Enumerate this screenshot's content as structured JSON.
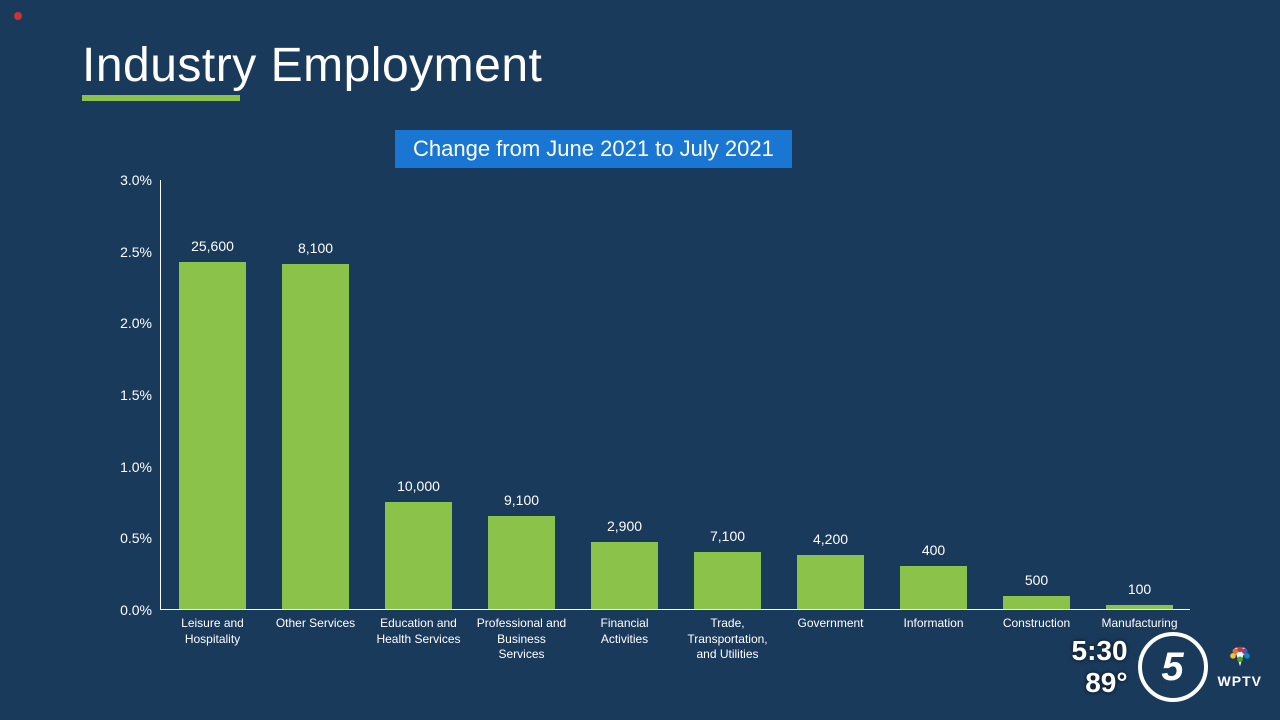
{
  "title": "Industry Employment",
  "subtitle": "Change from June 2021 to July 2021",
  "chart": {
    "type": "bar",
    "background_color": "#1a3a5c",
    "bar_color": "#8bc34a",
    "axis_color": "#ffffff",
    "text_color": "#ffffff",
    "title_underline_color": "#8bc34a",
    "subtitle_bg": "#1976d2",
    "ylim": [
      0,
      3.0
    ],
    "ytick_step": 0.5,
    "yticks": [
      "0.0%",
      "0.5%",
      "1.0%",
      "1.5%",
      "2.0%",
      "2.5%",
      "3.0%"
    ],
    "bar_width_pct": 6.5,
    "categories": [
      {
        "label": "Leisure and Hospitality",
        "value_label": "25,600",
        "pct": 2.42
      },
      {
        "label": "Other Services",
        "value_label": "8,100",
        "pct": 2.41
      },
      {
        "label": "Education and Health Services",
        "value_label": "10,000",
        "pct": 0.75
      },
      {
        "label": "Professional and Business Services",
        "value_label": "9,100",
        "pct": 0.65
      },
      {
        "label": "Financial Activities",
        "value_label": "2,900",
        "pct": 0.47
      },
      {
        "label": "Trade, Transportation, and Utilities",
        "value_label": "7,100",
        "pct": 0.4
      },
      {
        "label": "Government",
        "value_label": "4,200",
        "pct": 0.38
      },
      {
        "label": "Information",
        "value_label": "400",
        "pct": 0.3
      },
      {
        "label": "Construction",
        "value_label": "500",
        "pct": 0.09
      },
      {
        "label": "Manufacturing",
        "value_label": "100",
        "pct": 0.03
      }
    ]
  },
  "overlay": {
    "time": "5:30",
    "temp": "89°",
    "station": "WPTV",
    "logo_digit": "5"
  }
}
